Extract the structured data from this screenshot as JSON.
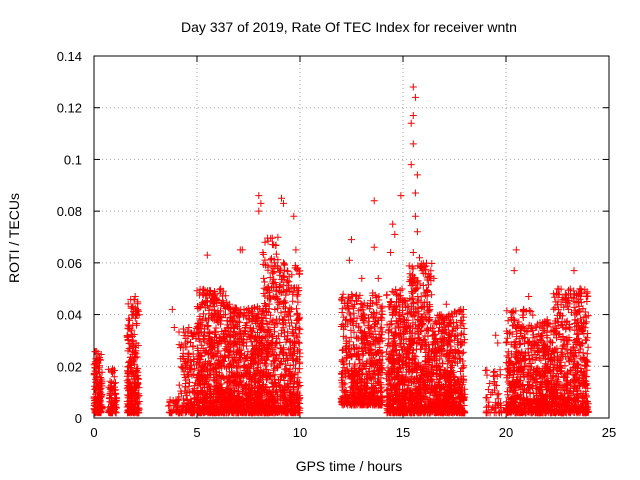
{
  "chart_data": {
    "type": "scatter",
    "title": "Day 337 of 2019, Rate Of TEC Index for receiver wntn",
    "xlabel": "GPS time / hours",
    "ylabel": "ROTI / TECUs",
    "xlim": [
      0,
      25
    ],
    "ylim": [
      0,
      0.14
    ],
    "xticks": [
      0,
      5,
      10,
      15,
      20,
      25
    ],
    "yticks": [
      0,
      0.02,
      0.04,
      0.06,
      0.08,
      0.1,
      0.12,
      0.14
    ],
    "xtick_labels": [
      "0",
      "5",
      "10",
      "15",
      "20",
      "25"
    ],
    "ytick_labels": [
      "0",
      "0.02",
      "0.04",
      "0.06",
      "0.08",
      "0.1",
      "0.12",
      "0.14"
    ],
    "grid": true,
    "marker": "+",
    "marker_color": "#ff0000",
    "clusters": [
      {
        "x": [
          0.0,
          0.4
        ],
        "y": [
          0.002,
          0.026
        ],
        "n": 160
      },
      {
        "x": [
          0.7,
          1.1
        ],
        "y": [
          0.002,
          0.019
        ],
        "n": 90
      },
      {
        "x": [
          1.6,
          2.2
        ],
        "y": [
          0.002,
          0.046
        ],
        "n": 240
      },
      {
        "x": [
          3.6,
          4.1
        ],
        "y": [
          0.002,
          0.009
        ],
        "n": 30
      },
      {
        "x": [
          4.1,
          5.0
        ],
        "y": [
          0.002,
          0.035
        ],
        "n": 150
      },
      {
        "x": [
          5.0,
          6.6
        ],
        "y": [
          0.002,
          0.05
        ],
        "n": 650
      },
      {
        "x": [
          6.6,
          8.2
        ],
        "y": [
          0.002,
          0.043
        ],
        "n": 650
      },
      {
        "x": [
          8.2,
          9.0
        ],
        "y": [
          0.002,
          0.07
        ],
        "n": 320
      },
      {
        "x": [
          9.0,
          10.0
        ],
        "y": [
          0.002,
          0.06
        ],
        "n": 360
      },
      {
        "x": [
          12.0,
          13.2
        ],
        "y": [
          0.005,
          0.048
        ],
        "n": 360
      },
      {
        "x": [
          13.2,
          14.0
        ],
        "y": [
          0.005,
          0.05
        ],
        "n": 260
      },
      {
        "x": [
          14.2,
          15.2
        ],
        "y": [
          0.002,
          0.05
        ],
        "n": 420
      },
      {
        "x": [
          15.2,
          16.4
        ],
        "y": [
          0.002,
          0.06
        ],
        "n": 520
      },
      {
        "x": [
          16.4,
          17.2
        ],
        "y": [
          0.002,
          0.04
        ],
        "n": 300
      },
      {
        "x": [
          17.2,
          18.0
        ],
        "y": [
          0.002,
          0.042
        ],
        "n": 300
      },
      {
        "x": [
          19.0,
          19.8
        ],
        "y": [
          0.002,
          0.02
        ],
        "n": 50
      },
      {
        "x": [
          20.0,
          21.4
        ],
        "y": [
          0.002,
          0.042
        ],
        "n": 420
      },
      {
        "x": [
          21.4,
          22.3
        ],
        "y": [
          0.002,
          0.038
        ],
        "n": 320
      },
      {
        "x": [
          22.3,
          24.0
        ],
        "y": [
          0.002,
          0.05
        ],
        "n": 560
      }
    ],
    "outliers": [
      [
        0.2,
        0.025
      ],
      [
        0.9,
        0.019
      ],
      [
        2.0,
        0.047
      ],
      [
        3.8,
        0.042
      ],
      [
        3.9,
        0.035
      ],
      [
        4.6,
        0.035
      ],
      [
        5.5,
        0.063
      ],
      [
        5.6,
        0.048
      ],
      [
        6.3,
        0.04
      ],
      [
        7.1,
        0.065
      ],
      [
        7.2,
        0.065
      ],
      [
        8.0,
        0.086
      ],
      [
        8.1,
        0.083
      ],
      [
        8.0,
        0.08
      ],
      [
        8.3,
        0.068
      ],
      [
        8.2,
        0.064
      ],
      [
        9.1,
        0.085
      ],
      [
        9.2,
        0.083
      ],
      [
        9.7,
        0.078
      ],
      [
        9.8,
        0.065
      ],
      [
        9.2,
        0.06
      ],
      [
        9.0,
        0.049
      ],
      [
        12.5,
        0.069
      ],
      [
        12.4,
        0.061
      ],
      [
        13.0,
        0.054
      ],
      [
        13.6,
        0.084
      ],
      [
        13.6,
        0.066
      ],
      [
        13.8,
        0.054
      ],
      [
        14.5,
        0.075
      ],
      [
        14.6,
        0.071
      ],
      [
        14.4,
        0.064
      ],
      [
        14.9,
        0.086
      ],
      [
        15.5,
        0.128
      ],
      [
        15.6,
        0.124
      ],
      [
        15.5,
        0.117
      ],
      [
        15.4,
        0.114
      ],
      [
        15.5,
        0.106
      ],
      [
        15.4,
        0.098
      ],
      [
        15.7,
        0.094
      ],
      [
        15.6,
        0.087
      ],
      [
        15.6,
        0.078
      ],
      [
        15.7,
        0.072
      ],
      [
        15.5,
        0.064
      ],
      [
        15.8,
        0.062
      ],
      [
        16.5,
        0.054
      ],
      [
        17.1,
        0.044
      ],
      [
        17.8,
        0.042
      ],
      [
        19.5,
        0.032
      ],
      [
        19.6,
        0.029
      ],
      [
        20.5,
        0.065
      ],
      [
        20.4,
        0.057
      ],
      [
        21.1,
        0.047
      ],
      [
        22.0,
        0.038
      ],
      [
        23.3,
        0.057
      ],
      [
        23.6,
        0.05
      ],
      [
        23.9,
        0.047
      ],
      [
        23.5,
        0.045
      ]
    ]
  }
}
